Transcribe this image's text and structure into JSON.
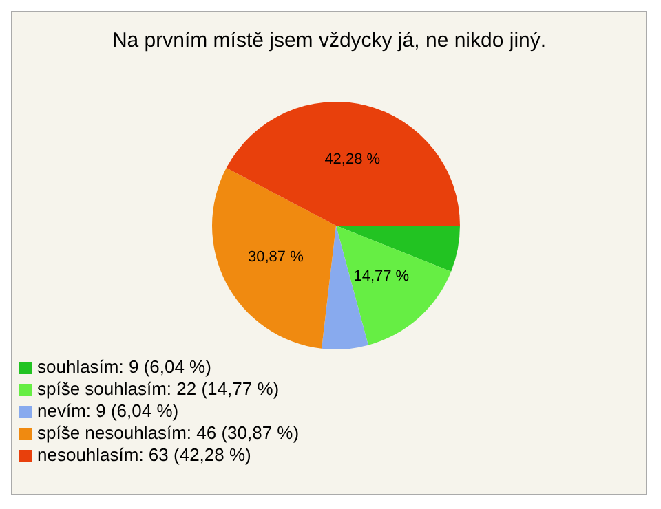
{
  "chart_data": {
    "type": "pie",
    "title": "Na prvním místě jsem vždycky já, ne nikdo jiný.",
    "categories": [
      "souhlasím: 9 (6,04 %)",
      "spíše souhlasím: 22 (14,77 %)",
      "nevím: 9 (6,04 %)",
      "spíše nesouhlasím: 46 (30,87 %)",
      "nesouhlasím: 63 (42,28 %)"
    ],
    "values": [
      6.04,
      14.77,
      6.04,
      30.87,
      42.28
    ],
    "colors": [
      "#22c322",
      "#66ee44",
      "#88aaee",
      "#f08a10",
      "#e8400c"
    ],
    "value_labels": [
      null,
      "14,77 %",
      null,
      "30,87 %",
      "42,28 %"
    ],
    "legend": "bottom left"
  }
}
